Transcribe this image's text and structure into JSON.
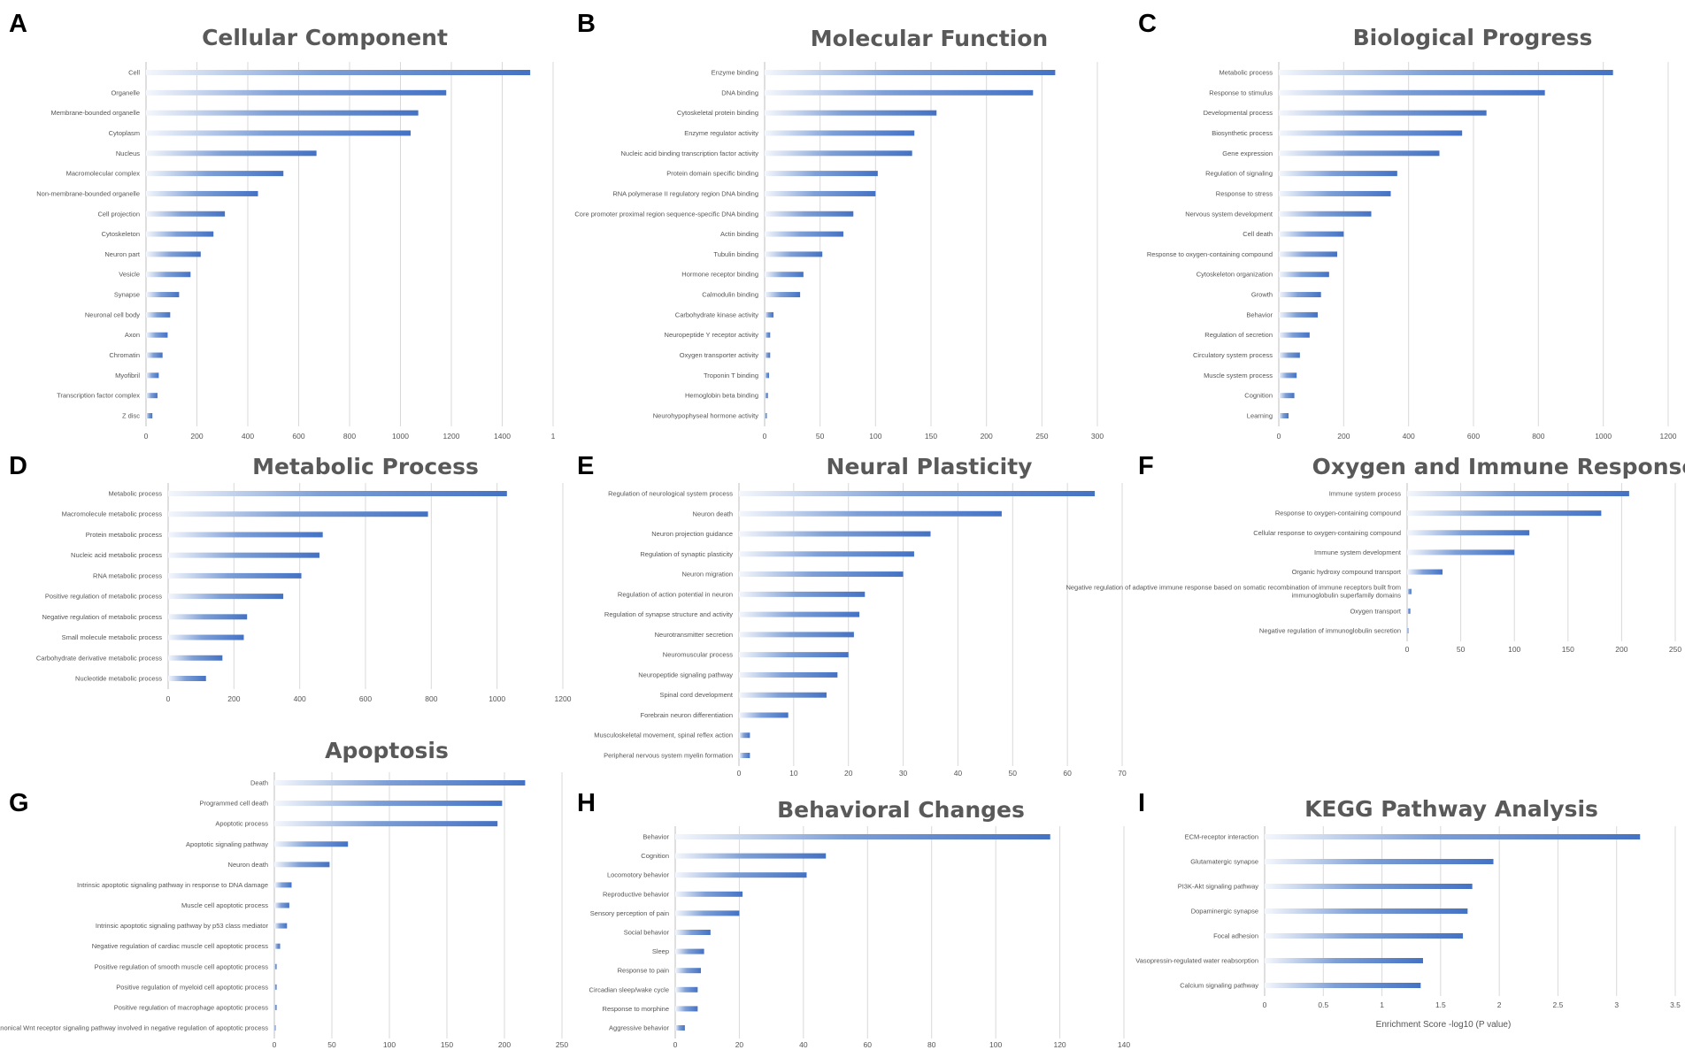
{
  "colors": {
    "bar": "#4472C4",
    "bar_fade": "#f4f7fc",
    "grid": "#d9d9d9",
    "text": "#595959"
  },
  "chart_data": [
    {
      "panel": "A",
      "type": "bar",
      "orientation": "horizontal",
      "title": "Cellular Component",
      "categories": [
        "Cell",
        "Organelle",
        "Membrane-bounded organelle",
        "Cytoplasm",
        "Nucleus",
        "Macromolecular complex",
        "Non-membrane-bounded organelle",
        "Cell projection",
        "Cytoskeleton",
        "Neuron part",
        "Vesicle",
        "Synapse",
        "Neuronal cell body",
        "Axon",
        "Chromatin",
        "Myofibril",
        "Transcription factor complex",
        "Z disc"
      ],
      "values": [
        1510,
        1180,
        1070,
        1040,
        670,
        540,
        440,
        310,
        265,
        215,
        175,
        130,
        95,
        85,
        65,
        50,
        45,
        25
      ],
      "xticks": [
        "0",
        "200",
        "400",
        "600",
        "800",
        "1000",
        "1200",
        "1400",
        "1"
      ],
      "xlim": [
        0,
        1600
      ],
      "xlabel": ""
    },
    {
      "panel": "B",
      "type": "bar",
      "orientation": "horizontal",
      "title": "Molecular Function",
      "categories": [
        "Enzyme binding",
        "DNA binding",
        "Cytoskeletal protein binding",
        "Enzyme regulator activity",
        "Nucleic acid binding transcription factor activity",
        "Protein domain specific binding",
        "RNA polymerase II regulatory region DNA binding",
        "Core promoter proximal region sequence-specific DNA binding",
        "Actin binding",
        "Tubulin binding",
        "Hormone receptor binding",
        "Calmodulin binding",
        "Carbohydrate kinase activity",
        "Neuropeptide Y receptor activity",
        "Oxygen transporter activity",
        "Troponin T binding",
        "Hemoglobin beta binding",
        "Neurohypophyseal hormone activity"
      ],
      "values": [
        262,
        242,
        155,
        135,
        133,
        102,
        100,
        80,
        71,
        52,
        35,
        32,
        8,
        5,
        5,
        4,
        3,
        2
      ],
      "xticks": [
        "0",
        "50",
        "100",
        "150",
        "200",
        "250",
        "300"
      ],
      "xlim": [
        0,
        300
      ],
      "xlabel": ""
    },
    {
      "panel": "C",
      "type": "bar",
      "orientation": "horizontal",
      "title": "Biological Progress",
      "categories": [
        "Metabolic process",
        "Response to stimulus",
        "Developmental process",
        "Biosynthetic process",
        "Gene expression",
        "Regulation of signaling",
        "Response to stress",
        "Nervous system development",
        "Cell death",
        "Response to oxygen-containing compound",
        "Cytoskeleton organization",
        "Growth",
        "Behavior",
        "Regulation of secretion",
        "Circulatory system process",
        "Muscle system process",
        "Cognition",
        "Learning"
      ],
      "values": [
        1030,
        820,
        640,
        565,
        495,
        365,
        345,
        285,
        200,
        180,
        155,
        130,
        120,
        95,
        65,
        55,
        48,
        30
      ],
      "xticks": [
        "0",
        "200",
        "400",
        "600",
        "800",
        "1000",
        "1200"
      ],
      "xlim": [
        0,
        1200
      ],
      "xlabel": ""
    },
    {
      "panel": "D",
      "type": "bar",
      "orientation": "horizontal",
      "title": "Metabolic Process",
      "categories": [
        "Metabolic process",
        "Macromolecule metabolic process",
        "Protein metabolic process",
        "Nucleic acid metabolic process",
        "RNA metabolic process",
        "Positive regulation of metabolic process",
        "Negative regulation of metabolic process",
        "Small molecule metabolic process",
        "Carbohydrate derivative metabolic process",
        "Nucleotide metabolic process"
      ],
      "values": [
        1030,
        790,
        470,
        460,
        405,
        350,
        240,
        230,
        165,
        115
      ],
      "xticks": [
        "0",
        "200",
        "400",
        "600",
        "800",
        "1000",
        "1200"
      ],
      "xlim": [
        0,
        1200
      ],
      "xlabel": ""
    },
    {
      "panel": "E",
      "type": "bar",
      "orientation": "horizontal",
      "title": "Neural Plasticity",
      "categories": [
        "Regulation of neurological system process",
        "Neuron death",
        "Neuron projection guidance",
        "Regulation of synaptic plasticity",
        "Neuron migration",
        "Regulation of action potential in neuron",
        "Regulation of synapse structure and activity",
        "Neurotransmitter secretion",
        "Neuromuscular process",
        "Neuropeptide signaling pathway",
        "Spinal cord development",
        "Forebrain neuron differentiation",
        "Musculoskeletal movement, spinal reflex action",
        "Peripheral nervous system myelin formation"
      ],
      "values": [
        65,
        48,
        35,
        32,
        30,
        23,
        22,
        21,
        20,
        18,
        16,
        9,
        2,
        2
      ],
      "xticks": [
        "0",
        "10",
        "20",
        "30",
        "40",
        "50",
        "60",
        "70"
      ],
      "xlim": [
        0,
        70
      ],
      "xlabel": ""
    },
    {
      "panel": "F",
      "type": "bar",
      "orientation": "horizontal",
      "title": "Oxygen and Immune Response",
      "categories": [
        "Immune system process",
        "Response to oxygen-containing compound",
        "Cellular response to oxygen-containing compound",
        "Immune system development",
        "Organic hydroxy compound transport",
        "Negative regulation of adaptive immune response based on somatic recombination of immune receptors built from immunoglobulin superfamily domains",
        "Oxygen transport",
        "Negative regulation of immunoglobulin secretion"
      ],
      "values": [
        207,
        181,
        114,
        100,
        33,
        4,
        3,
        1
      ],
      "xticks": [
        "0",
        "50",
        "100",
        "150",
        "200",
        "250"
      ],
      "xlim": [
        0,
        250
      ],
      "xlabel": ""
    },
    {
      "panel": "G",
      "type": "bar",
      "orientation": "horizontal",
      "title": "Apoptosis",
      "categories": [
        "Death",
        "Programmed cell death",
        "Apoptotic process",
        "Apoptotic signaling pathway",
        "Neuron death",
        "Intrinsic apoptotic signaling pathway in response to DNA damage",
        "Muscle cell apoptotic process",
        "Intrinsic apoptotic signaling pathway by p53 class mediator",
        "Negative regulation of cardiac muscle cell apoptotic process",
        "Positive regulation of smooth muscle cell apoptotic process",
        "Positive regulation of myeloid cell apoptotic process",
        "Positive regulation of macrophage apoptotic process",
        "Canonical Wnt receptor signaling pathway involved in negative regulation of apoptotic process"
      ],
      "values": [
        218,
        198,
        194,
        64,
        48,
        15,
        13,
        11,
        5,
        2,
        2,
        2,
        1
      ],
      "xticks": [
        "0",
        "50",
        "100",
        "150",
        "200",
        "250"
      ],
      "xlim": [
        0,
        250
      ],
      "xlabel": ""
    },
    {
      "panel": "H",
      "type": "bar",
      "orientation": "horizontal",
      "title": "Behavioral Changes",
      "categories": [
        "Behavior",
        "Cognition",
        "Locomotory behavior",
        "Reproductive behavior",
        "Sensory perception of pain",
        "Social behavior",
        "Sleep",
        "Response to pain",
        "Circadian sleep/wake cycle",
        "Response to morphine",
        "Aggressive behavior"
      ],
      "values": [
        117,
        47,
        41,
        21,
        20,
        11,
        9,
        8,
        7,
        7,
        3
      ],
      "xticks": [
        "0",
        "20",
        "40",
        "60",
        "80",
        "100",
        "120",
        "140"
      ],
      "xlim": [
        0,
        140
      ],
      "xlabel": ""
    },
    {
      "panel": "I",
      "type": "bar",
      "orientation": "horizontal",
      "title": "KEGG Pathway Analysis",
      "categories": [
        "ECM-receptor interaction",
        "Glutamatergic synapse",
        "PI3K-Akt signaling pathway",
        "Dopaminergic synapse",
        "Focal adhesion",
        "Vasopressin-regulated water reabsorption",
        "Calcium signaling pathway"
      ],
      "values": [
        3.2,
        1.95,
        1.77,
        1.73,
        1.69,
        1.35,
        1.33
      ],
      "xticks": [
        "0",
        "0.5",
        "1",
        "1.5",
        "2",
        "2.5",
        "3",
        "3.5"
      ],
      "xlim": [
        0,
        3.5
      ],
      "xlabel": "Enrichment Score -log10 (P value)"
    }
  ]
}
